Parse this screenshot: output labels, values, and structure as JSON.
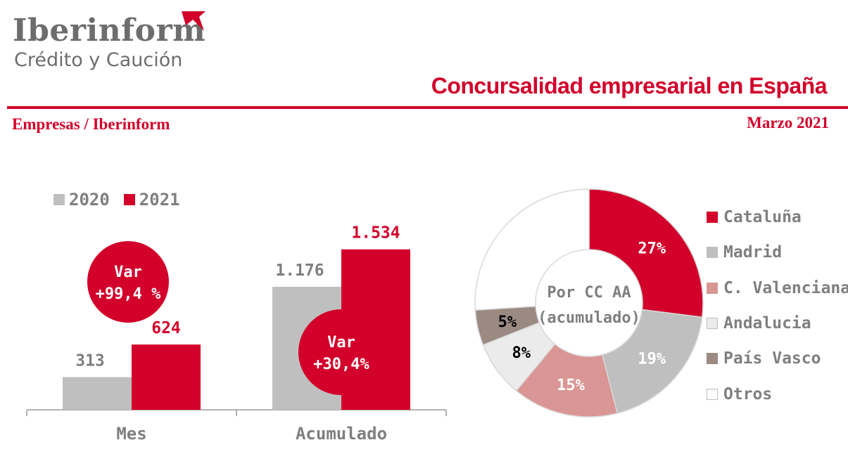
{
  "header": {
    "logo_name": "Iberinform",
    "logo_subtitle": "Crédito y Caución",
    "title": "Concursalidad empresarial en España",
    "source": "Empresas / Iberinform",
    "date": "Marzo 2021"
  },
  "colors": {
    "brand_red": "#d2002a",
    "gray": "#bfbfbf",
    "text_gray": "#7f7f7f",
    "light_red": "#d99694",
    "very_light_gray": "#ebebeb",
    "taupe": "#9a8a82",
    "white": "#ffffff"
  },
  "chart_data": [
    {
      "type": "bar",
      "categories": [
        "Mes",
        "Acumulado"
      ],
      "series": [
        {
          "name": "2020",
          "values": [
            313,
            1176
          ],
          "labels": [
            "313",
            "1.176"
          ],
          "color": "#bfbfbf"
        },
        {
          "name": "2021",
          "values": [
            624,
            1534
          ],
          "labels": [
            "624",
            "1.534"
          ],
          "color": "#d2002a"
        }
      ],
      "ylim": [
        0,
        1700
      ],
      "legend": "top-left",
      "annotations": [
        {
          "category": "Mes",
          "lines": [
            "Var",
            "+99,4 %"
          ]
        },
        {
          "category": "Acumulado",
          "lines": [
            "Var",
            "+30,4%"
          ]
        }
      ]
    },
    {
      "type": "pie",
      "donut": true,
      "center_label": [
        "Por CC AA",
        "(acumulado)"
      ],
      "slices": [
        {
          "label": "Cataluña",
          "value": 27,
          "text": "27%",
          "color": "#d2002a",
          "text_color": "#ffffff"
        },
        {
          "label": "Madrid",
          "value": 19,
          "text": "19%",
          "color": "#bfbfbf",
          "text_color": "#ffffff"
        },
        {
          "label": "C. Valenciana",
          "value": 15,
          "text": "15%",
          "color": "#d99694",
          "text_color": "#ffffff"
        },
        {
          "label": "Andalucia",
          "value": 8,
          "text": "8%",
          "color": "#ebebeb",
          "text_color": "#000000"
        },
        {
          "label": "País Vasco",
          "value": 5,
          "text": "5%",
          "color": "#9a8a82",
          "text_color": "#000000"
        },
        {
          "label": "Otros",
          "value": 26,
          "text": "",
          "color": "#ffffff",
          "text_color": "#000000"
        }
      ],
      "legend": "right"
    }
  ]
}
